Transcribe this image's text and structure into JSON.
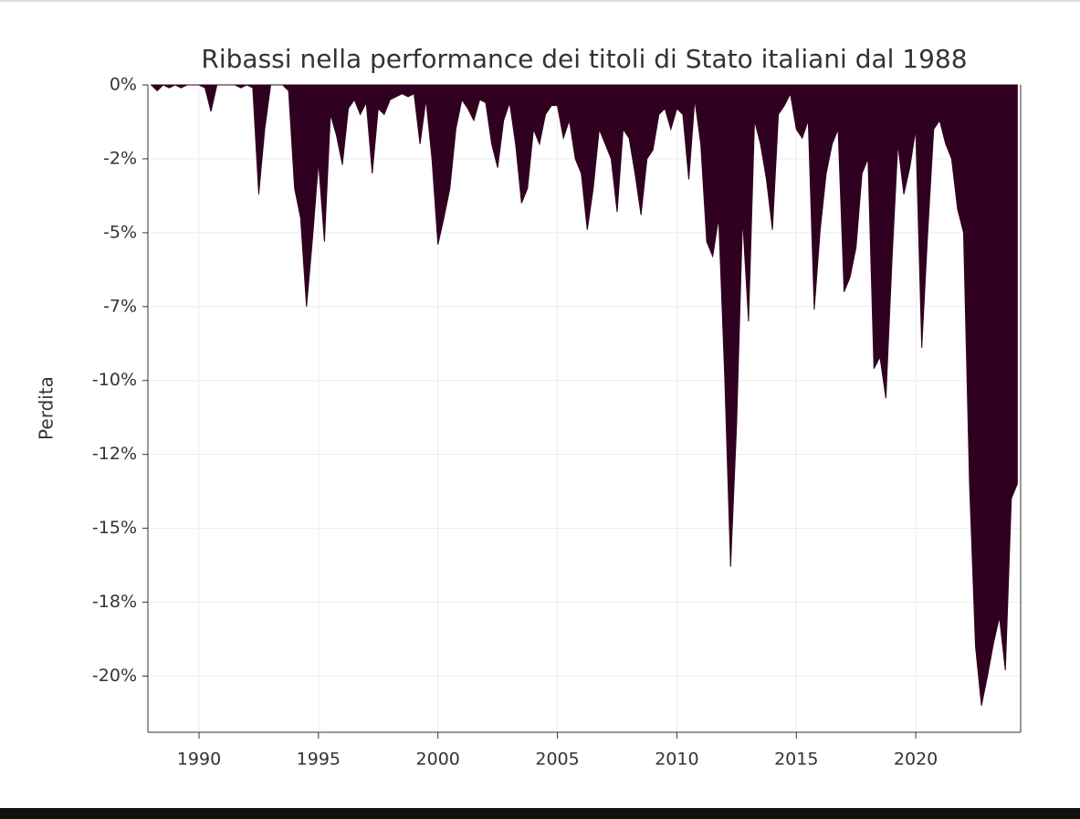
{
  "chart_data": {
    "type": "area",
    "title": "Ribassi nella performance dei titoli di Stato italiani dal 1988",
    "ylabel": "Perdita",
    "color": "#300020",
    "grid": true,
    "xlim": [
      1987.86,
      2024.39
    ],
    "xticks": [
      1990,
      1995,
      2000,
      2005,
      2010,
      2015,
      2020
    ],
    "ylim": [
      -21.9,
      0
    ],
    "yticks": [
      {
        "value": 0,
        "label": "0%"
      },
      {
        "value": -2.5,
        "label": "-2%"
      },
      {
        "value": -5,
        "label": "-5%"
      },
      {
        "value": -7.5,
        "label": "-7%"
      },
      {
        "value": -10,
        "label": "-10%"
      },
      {
        "value": -12.5,
        "label": "-12%"
      },
      {
        "value": -15,
        "label": "-15%"
      },
      {
        "value": -17.5,
        "label": "-18%"
      },
      {
        "value": -20,
        "label": "-20%"
      }
    ],
    "x": [
      1988,
      1988.25,
      1988.5,
      1988.75,
      1989,
      1989.25,
      1989.5,
      1989.75,
      1990,
      1990.25,
      1990.5,
      1990.75,
      1991,
      1991.25,
      1991.5,
      1991.75,
      1992,
      1992.25,
      1992.5,
      1992.75,
      1993,
      1993.25,
      1993.5,
      1993.75,
      1994,
      1994.25,
      1994.5,
      1994.75,
      1995,
      1995.25,
      1995.5,
      1995.75,
      1996,
      1996.25,
      1996.5,
      1996.75,
      1997,
      1997.25,
      1997.5,
      1997.75,
      1998,
      1998.25,
      1998.5,
      1998.75,
      1999,
      1999.25,
      1999.5,
      1999.75,
      2000,
      2000.25,
      2000.5,
      2000.75,
      2001,
      2001.25,
      2001.5,
      2001.75,
      2002,
      2002.25,
      2002.5,
      2002.75,
      2003,
      2003.25,
      2003.5,
      2003.75,
      2004,
      2004.25,
      2004.5,
      2004.75,
      2005,
      2005.25,
      2005.5,
      2005.75,
      2006,
      2006.25,
      2006.5,
      2006.75,
      2007,
      2007.25,
      2007.5,
      2007.75,
      2008,
      2008.25,
      2008.5,
      2008.75,
      2009,
      2009.25,
      2009.5,
      2009.75,
      2010,
      2010.25,
      2010.5,
      2010.75,
      2011,
      2011.25,
      2011.5,
      2011.75,
      2012,
      2012.25,
      2012.5,
      2012.75,
      2013,
      2013.25,
      2013.5,
      2013.75,
      2014,
      2014.25,
      2014.5,
      2014.75,
      2015,
      2015.25,
      2015.5,
      2015.75,
      2016,
      2016.25,
      2016.5,
      2016.75,
      2017,
      2017.25,
      2017.5,
      2017.75,
      2018,
      2018.25,
      2018.5,
      2018.75,
      2019,
      2019.25,
      2019.5,
      2019.75,
      2020,
      2020.25,
      2020.5,
      2020.75,
      2021,
      2021.25,
      2021.5,
      2021.75,
      2022,
      2022.25,
      2022.5,
      2022.75,
      2023,
      2023.25,
      2023.5,
      2023.75,
      2024,
      2024.25
    ],
    "values": [
      0,
      -0.2,
      0,
      -0.1,
      0,
      -0.1,
      0,
      0,
      0,
      -0.1,
      -0.9,
      0,
      0,
      0,
      0,
      -0.1,
      0,
      -0.1,
      -3.7,
      -1.5,
      0,
      0,
      0,
      -0.2,
      -3.5,
      -4.5,
      -7.5,
      -5.2,
      -2.6,
      -5.3,
      -1.0,
      -1.7,
      -2.7,
      -0.8,
      -0.5,
      -1.0,
      -0.6,
      -3.0,
      -0.8,
      -1.0,
      -0.5,
      -0.4,
      -0.3,
      -0.4,
      -0.3,
      -2.0,
      -0.5,
      -2.5,
      -5.4,
      -4.5,
      -3.5,
      -1.5,
      -0.5,
      -0.8,
      -1.2,
      -0.5,
      -0.6,
      -2.0,
      -2.8,
      -1.2,
      -0.6,
      -2.0,
      -4.0,
      -3.5,
      -1.5,
      -2.0,
      -1.0,
      -0.7,
      -0.7,
      -1.8,
      -1.2,
      -2.5,
      -3.0,
      -4.9,
      -3.5,
      -1.5,
      -2.0,
      -2.5,
      -4.3,
      -1.5,
      -1.8,
      -3.0,
      -4.4,
      -2.5,
      -2.2,
      -1.0,
      -0.8,
      -1.5,
      -0.8,
      -1.0,
      -3.2,
      -0.5,
      -2.0,
      -5.3,
      -5.8,
      -4.5,
      -9.8,
      -16.3,
      -11.5,
      -4.5,
      -8.0,
      -1.2,
      -2.0,
      -3.2,
      -4.9,
      -1.0,
      -0.7,
      -0.3,
      -1.5,
      -1.8,
      -1.2,
      -7.6,
      -4.9,
      -3.0,
      -2.0,
      -1.5,
      -7.0,
      -6.5,
      -5.5,
      -3.0,
      -2.5,
      -9.6,
      -9.2,
      -10.6,
      -6.0,
      -2.0,
      -3.7,
      -2.8,
      -1.5,
      -8.9,
      -5.0,
      -1.5,
      -1.2,
      -2.0,
      -2.5,
      -4.2,
      -5.0,
      -13.5,
      -19.0,
      -21.0,
      -20.0,
      -18.9,
      -18.0,
      -19.8,
      -14.0,
      -13.5
    ]
  }
}
